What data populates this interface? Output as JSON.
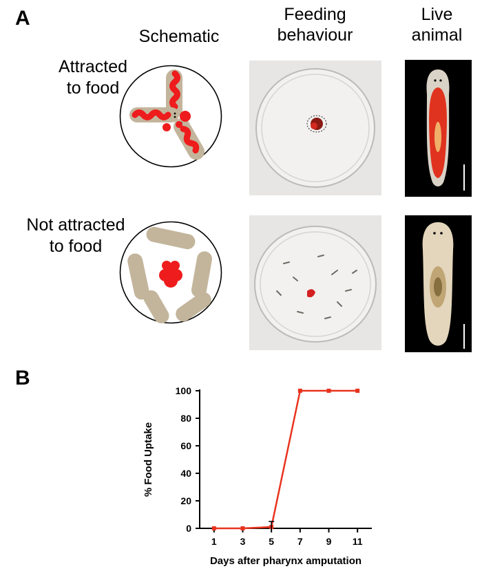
{
  "panel_a": {
    "letter": "A",
    "columns": {
      "schematic": "Schematic",
      "feeding": [
        "Feeding",
        "behaviour"
      ],
      "live": [
        "Live",
        "animal"
      ]
    },
    "rows": {
      "attracted": [
        "Attracted",
        "to food"
      ],
      "not_attracted": [
        "Not attracted",
        "to food"
      ]
    },
    "colors": {
      "worm": "#c3b59c",
      "food": "#ee1c1c",
      "dish": "#e8e6e4",
      "photo_bg": "#000000"
    }
  },
  "panel_b": {
    "letter": "B"
  },
  "chart_data": {
    "type": "line",
    "title": "",
    "xlabel": "Days after pharynx amputation",
    "ylabel": "% Food Uptake",
    "x": [
      1,
      3,
      5,
      7,
      9,
      11
    ],
    "series": [
      {
        "values": [
          0,
          0,
          1,
          100,
          100,
          100
        ],
        "color": "#e8331e"
      }
    ],
    "xticks": [
      1,
      3,
      5,
      7,
      9,
      11
    ],
    "yticks": [
      0,
      20,
      40,
      60,
      80,
      100
    ],
    "xlim": [
      0,
      12
    ],
    "ylim": [
      0,
      100
    ],
    "grid": false
  }
}
